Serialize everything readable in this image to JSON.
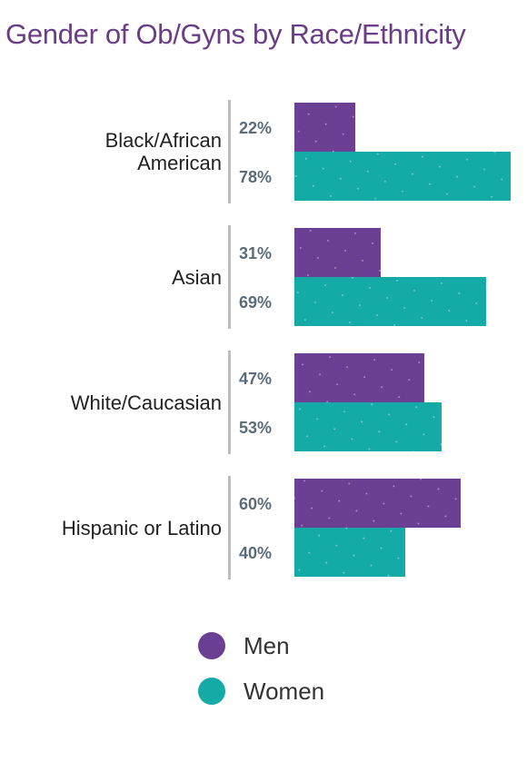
{
  "colors": {
    "title": "#6a3d86",
    "men": "#6b3f93",
    "women": "#14aaa6",
    "label": "#222222",
    "pct": "#5b6c78",
    "divider": "#b9bec3"
  },
  "chart_data": {
    "type": "bar",
    "orientation": "horizontal",
    "title": "Gender of Ob/Gyns by Race/Ethnicity",
    "categories": [
      "Black/African American",
      "Asian",
      "White/Caucasian",
      "Hispanic or Latino"
    ],
    "series": [
      {
        "name": "Men",
        "values": [
          22,
          31,
          47,
          60
        ],
        "labels": [
          "22%",
          "31%",
          "47%",
          "60%"
        ]
      },
      {
        "name": "Women",
        "values": [
          78,
          69,
          53,
          40
        ],
        "labels": [
          "78%",
          "69%",
          "53%",
          "40%"
        ]
      }
    ],
    "xlim": [
      0,
      78
    ],
    "legend": "bottom",
    "grid": false
  },
  "legend": {
    "items": [
      {
        "label": "Men",
        "icon": "purple-circle"
      },
      {
        "label": "Women",
        "icon": "teal-circle"
      }
    ]
  }
}
